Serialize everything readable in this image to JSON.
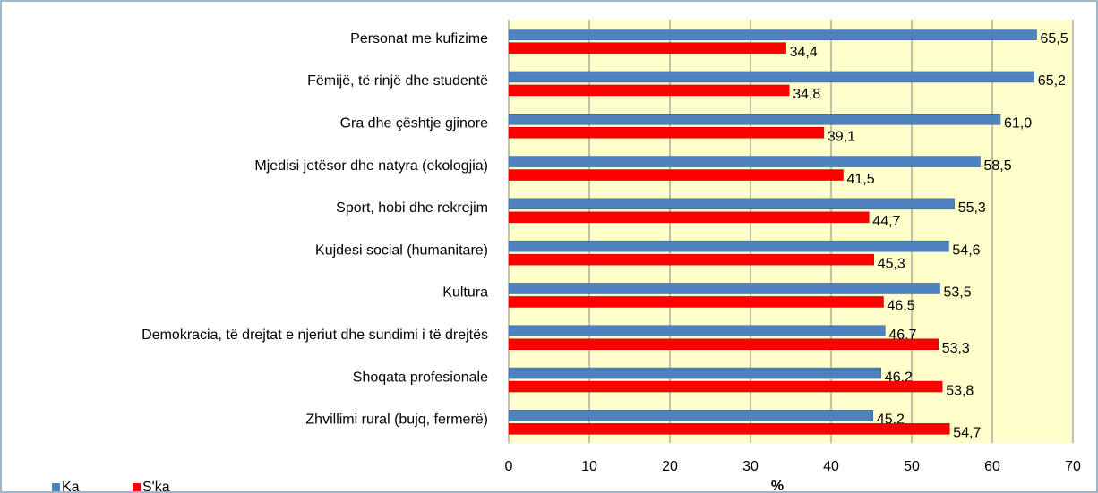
{
  "chart_data": {
    "type": "barh",
    "categories": [
      "Personat me kufizime",
      "Fëmijë, të rinjë dhe studentë",
      "Gra dhe çështje gjinore",
      "Mjedisi jetësor dhe natyra (ekologjia)",
      "Sport, hobi dhe rekrejim",
      "Kujdesi social (humanitare)",
      "Kultura",
      "Demokracia, të drejtat e njeriut dhe sundimi i të drejtës",
      "Shoqata profesionale",
      "Zhvillimi rural (bujq, fermerë)"
    ],
    "series": [
      {
        "name": "Ka",
        "color": "#4f81bd",
        "values": [
          65.5,
          65.2,
          61.0,
          58.5,
          55.3,
          54.6,
          53.5,
          46.7,
          46.2,
          45.2
        ],
        "value_labels": [
          "65,5",
          "65,2",
          "61,0",
          "58,5",
          "55,3",
          "54,6",
          "53,5",
          "46,7",
          "46,2",
          "45,2"
        ]
      },
      {
        "name": "S'ka",
        "color": "#ff0000",
        "values": [
          34.4,
          34.8,
          39.1,
          41.5,
          44.7,
          45.3,
          46.5,
          53.3,
          53.8,
          54.7
        ],
        "value_labels": [
          "34,4",
          "34,8",
          "39,1",
          "41,5",
          "44,7",
          "45,3",
          "46,5",
          "53,3",
          "53,8",
          "54,7"
        ]
      }
    ],
    "xlabel": "%",
    "xlim": [
      0,
      70
    ],
    "xticks": [
      0,
      10,
      20,
      30,
      40,
      50,
      60,
      70
    ],
    "grid": true,
    "legend": "bottom-left"
  }
}
